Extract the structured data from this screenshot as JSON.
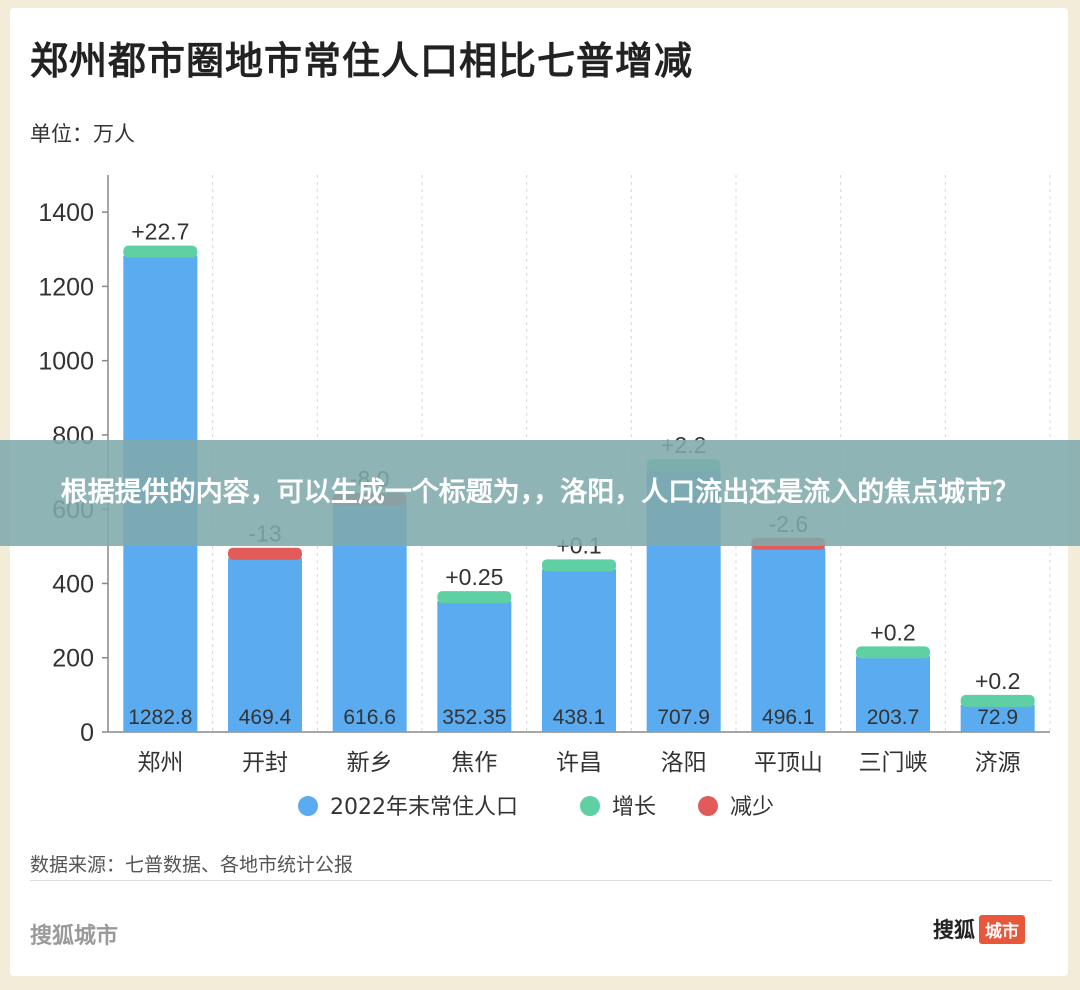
{
  "header": {
    "title": "郑州都市圈地市常住人口相比七普增减",
    "unit": "单位：万人"
  },
  "chart_data": {
    "type": "bar",
    "categories": [
      "郑州",
      "开封",
      "新乡",
      "焦作",
      "许昌",
      "洛阳",
      "平顶山",
      "三门峡",
      "济源"
    ],
    "series": [
      {
        "name": "2022年末常住人口",
        "values": [
          1282.8,
          469.4,
          616.6,
          352.35,
          438.1,
          707.9,
          496.1,
          203.7,
          72.9
        ],
        "labels": [
          "1282.8",
          "469.4",
          "616.6",
          "352.35",
          "438.1",
          "707.9",
          "496.1",
          "203.7",
          "72.9"
        ]
      },
      {
        "name": "增长",
        "type": "stack"
      },
      {
        "name": "减少",
        "type": "stack"
      }
    ],
    "changes": [
      22.7,
      -13,
      -8.0,
      0.25,
      0.1,
      2.2,
      -2.6,
      0.2,
      0.2
    ],
    "change_labels": [
      "+22.7",
      "-13",
      "-8.0",
      "+0.25",
      "+0.1",
      "+2.2",
      "-2.6",
      "+0.2",
      "+0.2"
    ],
    "ylim": [
      0,
      1500
    ],
    "yticks": [
      0,
      200,
      400,
      600,
      800,
      1000,
      1200,
      1400
    ],
    "grid": true,
    "legend": "bottom",
    "colors": {
      "population": "#5aabf0",
      "increase": "#5fd0a3",
      "decrease": "#e25b5b"
    }
  },
  "footer": {
    "source": "数据来源：七普数据、各地市统计公报",
    "brand_left": "搜狐城市",
    "brand_right_text": "搜狐",
    "brand_right_badge": "城市"
  },
  "overlay": {
    "text": "根据提供的内容，可以生成一个标题为，，洛阳，人口流出还是流入的焦点城市？"
  }
}
